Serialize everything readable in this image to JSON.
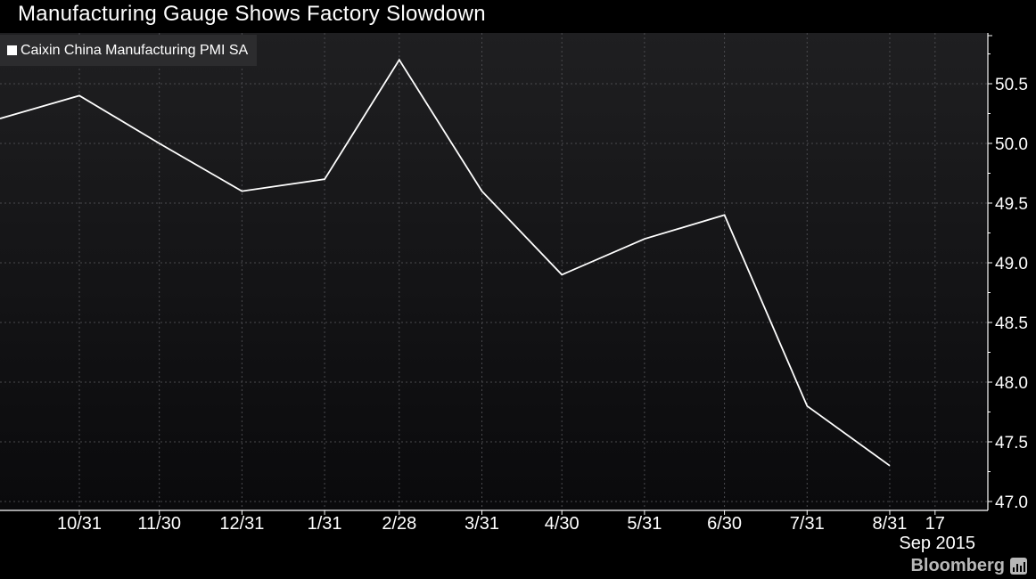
{
  "title": "Manufacturing Gauge Shows Factory Slowdown",
  "legend": {
    "label": "Caixin China Manufacturing PMI SA",
    "color": "#ffffff"
  },
  "x_axis_sublabel": "Sep 2015",
  "brand": {
    "name": "Bloomberg",
    "icon": "bloomberg-terminal-icon"
  },
  "colors": {
    "background": "#000000",
    "plot_background": "#141416",
    "line": "#ffffff",
    "grid": "#555555"
  },
  "chart_data": {
    "type": "line",
    "title": "Manufacturing Gauge Shows Factory Slowdown",
    "xlabel": "",
    "ylabel": "",
    "x_tick_labels": [
      "10/31",
      "11/30",
      "12/31",
      "1/31",
      "2/28",
      "3/31",
      "4/30",
      "5/31",
      "6/30",
      "7/31",
      "8/31",
      "17"
    ],
    "x_tick_sublabel": "Sep 2015",
    "y_tick_labels": [
      "47.0",
      "47.5",
      "48.0",
      "48.5",
      "49.0",
      "49.5",
      "50.0",
      "50.5"
    ],
    "ylim": [
      47.0,
      51.0
    ],
    "y_axis_side": "right",
    "grid": true,
    "legend_position": "top-left",
    "series": [
      {
        "name": "Caixin China Manufacturing PMI SA",
        "color": "#ffffff",
        "x": [
          "2014-09-30",
          "2014-10-31",
          "2014-11-30",
          "2014-12-31",
          "2015-01-31",
          "2015-02-28",
          "2015-03-31",
          "2015-04-30",
          "2015-05-31",
          "2015-06-30",
          "2015-07-31",
          "2015-08-31"
        ],
        "values": [
          50.2,
          50.4,
          50.0,
          49.6,
          49.7,
          50.7,
          49.6,
          48.9,
          49.2,
          49.4,
          47.8,
          47.3
        ]
      }
    ]
  }
}
